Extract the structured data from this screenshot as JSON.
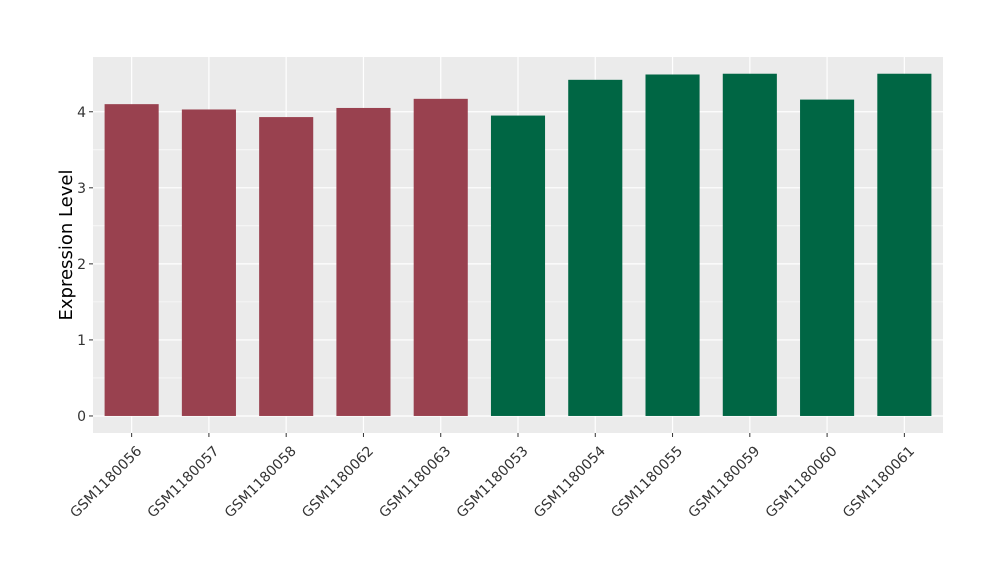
{
  "chart_data": {
    "type": "bar",
    "ylabel": "Expression Level",
    "categories": [
      "GSM1180056",
      "GSM1180057",
      "GSM1180058",
      "GSM1180062",
      "GSM1180063",
      "GSM1180053",
      "GSM1180054",
      "GSM1180055",
      "GSM1180059",
      "GSM1180060",
      "GSM1180061"
    ],
    "values": [
      4.1,
      4.03,
      3.93,
      4.05,
      4.17,
      3.95,
      4.42,
      4.49,
      4.5,
      4.16,
      4.5
    ],
    "colors": [
      "#99414f",
      "#99414f",
      "#99414f",
      "#99414f",
      "#99414f",
      "#006644",
      "#006644",
      "#006644",
      "#006644",
      "#006644",
      "#006644"
    ],
    "ylim": [
      -0.224,
      4.72
    ],
    "yticks": [
      0,
      1,
      2,
      3,
      4
    ],
    "grid": true,
    "minor_grid": true
  }
}
